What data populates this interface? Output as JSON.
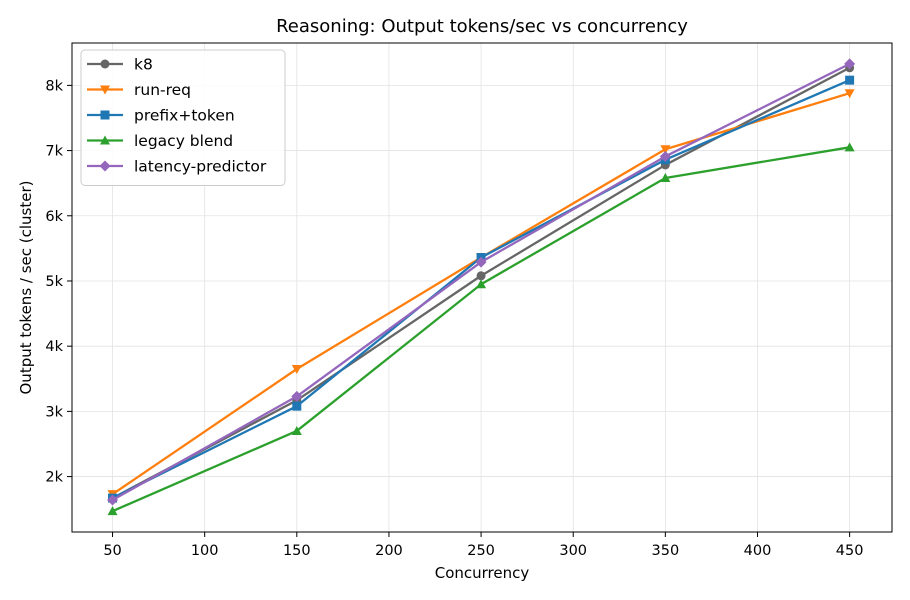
{
  "chart_data": {
    "type": "line",
    "title": "Reasoning: Output tokens/sec vs concurrency",
    "xlabel": "Concurrency",
    "ylabel": "Output tokens / sec (cluster)",
    "x": [
      50,
      150,
      250,
      350,
      450
    ],
    "xticks": [
      50,
      100,
      150,
      200,
      250,
      300,
      350,
      400,
      450
    ],
    "xlim": [
      28,
      473
    ],
    "yticks": [
      2000,
      3000,
      4000,
      5000,
      6000,
      7000,
      8000
    ],
    "ytick_labels": [
      "2k",
      "3k",
      "4k",
      "5k",
      "6k",
      "7k",
      "8k"
    ],
    "ylim": [
      1150,
      8650
    ],
    "grid": true,
    "legend_position": "top-left",
    "series": [
      {
        "name": "k8",
        "color": "#666666",
        "marker": "circle",
        "values": [
          1670,
          3170,
          5080,
          6780,
          8270
        ]
      },
      {
        "name": "run-req",
        "color": "#ff7f0e",
        "marker": "triangle-down",
        "values": [
          1730,
          3650,
          5360,
          7020,
          7880
        ]
      },
      {
        "name": "prefix+token",
        "color": "#1f77b4",
        "marker": "square",
        "values": [
          1670,
          3080,
          5360,
          6860,
          8080
        ]
      },
      {
        "name": "legacy blend",
        "color": "#2ca02c",
        "marker": "triangle-up",
        "values": [
          1470,
          2700,
          4950,
          6580,
          7050
        ]
      },
      {
        "name": "latency-predictor",
        "color": "#9467bd",
        "marker": "diamond",
        "values": [
          1640,
          3230,
          5290,
          6910,
          8330
        ]
      }
    ]
  }
}
